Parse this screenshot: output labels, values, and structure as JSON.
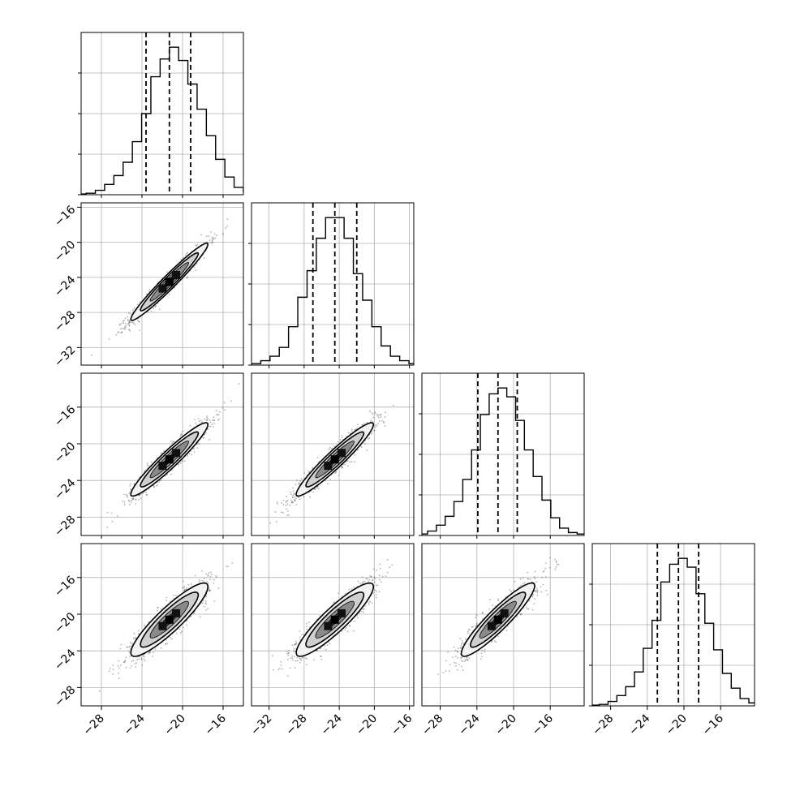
{
  "chart_data": {
    "type": "corner",
    "n_params": 4,
    "grid": true,
    "axis_labels": [
      "",
      "",
      "",
      ""
    ],
    "ranges": [
      [
        -30.0,
        -14.0
      ],
      [
        -34.0,
        -15.5
      ],
      [
        -30.0,
        -12.3
      ],
      [
        -30.0,
        -12.3
      ]
    ],
    "ticks": [
      [
        -28,
        -24,
        -20,
        -16
      ],
      [
        -32,
        -28,
        -24,
        -20,
        -16
      ],
      [
        -28,
        -24,
        -20,
        -16
      ],
      [
        -28,
        -24,
        -20,
        -16
      ]
    ],
    "tick_labels": [
      [
        "−28",
        "−24",
        "−20",
        "−16"
      ],
      [
        "−32",
        "−28",
        "−24",
        "−20",
        "−16"
      ],
      [
        "−28",
        "−24",
        "−20",
        "−16"
      ],
      [
        "−28",
        "−24",
        "−20",
        "−16"
      ]
    ],
    "quantiles": [
      [
        -23.6,
        -21.3,
        -19.2
      ],
      [
        -27.0,
        -24.5,
        -22.0
      ],
      [
        -23.9,
        -21.7,
        -19.6
      ],
      [
        -22.9,
        -20.6,
        -18.4
      ]
    ],
    "histograms": [
      [
        0.005,
        0.01,
        0.03,
        0.07,
        0.13,
        0.22,
        0.36,
        0.55,
        0.8,
        0.92,
        1.0,
        0.91,
        0.75,
        0.58,
        0.4,
        0.24,
        0.12,
        0.05,
        0.02,
        0.01
      ],
      [
        0.005,
        0.01,
        0.03,
        0.06,
        0.12,
        0.26,
        0.46,
        0.64,
        0.86,
        1.0,
        1.0,
        0.86,
        0.62,
        0.44,
        0.26,
        0.13,
        0.06,
        0.03,
        0.01,
        0.005
      ],
      [
        0.005,
        0.01,
        0.03,
        0.07,
        0.13,
        0.23,
        0.38,
        0.58,
        0.82,
        0.96,
        1.0,
        0.94,
        0.78,
        0.58,
        0.4,
        0.24,
        0.12,
        0.05,
        0.02,
        0.01
      ],
      [
        0.005,
        0.01,
        0.03,
        0.07,
        0.13,
        0.23,
        0.39,
        0.58,
        0.84,
        0.96,
        1.0,
        0.94,
        0.76,
        0.56,
        0.38,
        0.22,
        0.12,
        0.05,
        0.02,
        0.005
      ]
    ],
    "means": [
      -21.3,
      -24.5,
      -21.7,
      -20.6
    ],
    "sigmas": [
      1.9,
      2.2,
      2.0,
      2.0
    ],
    "correlations": [
      [
        1.0,
        0.97,
        0.95,
        0.9
      ],
      [
        0.97,
        1.0,
        0.95,
        0.9
      ],
      [
        0.95,
        0.95,
        1.0,
        0.92
      ],
      [
        0.9,
        0.9,
        0.92,
        1.0
      ]
    ],
    "contour_levels_sigma": [
      0.5,
      1.0,
      1.5,
      2.0
    ],
    "colors": {
      "line": "#000000",
      "grid": "#b0b0b0",
      "points": "#555555",
      "frame": "#000000"
    }
  }
}
